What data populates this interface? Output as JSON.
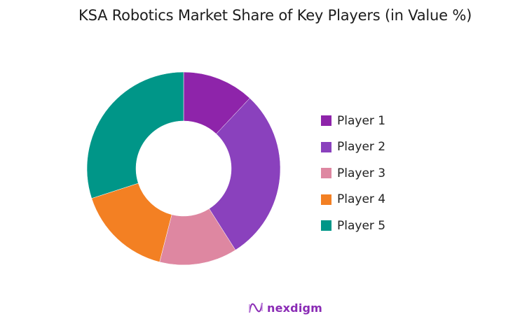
{
  "title": "KSA Robotics Market Share of Key Players (in Value %)",
  "chart_data": {
    "type": "pie",
    "subtype": "donut",
    "title": "KSA Robotics Market Share of Key Players (in Value %)",
    "categories": [
      "Player 1",
      "Player 2",
      "Player 3",
      "Player 4",
      "Player 5"
    ],
    "values": [
      12,
      29,
      13,
      16,
      30
    ],
    "colors": [
      "#8e24aa",
      "#8a41bd",
      "#de87a1",
      "#f38023",
      "#009688"
    ],
    "start_angle": "12 o'clock, clockwise",
    "legend_position": "right",
    "data_labels": false
  },
  "legend": [
    {
      "label": "Player 1",
      "color": "#8e24aa"
    },
    {
      "label": "Player 2",
      "color": "#8a41bd"
    },
    {
      "label": "Player 3",
      "color": "#de87a1"
    },
    {
      "label": "Player 4",
      "color": "#f38023"
    },
    {
      "label": "Player 5",
      "color": "#009688"
    }
  ],
  "logo": {
    "text": "nexdigm",
    "color": "#8a2bb5"
  }
}
